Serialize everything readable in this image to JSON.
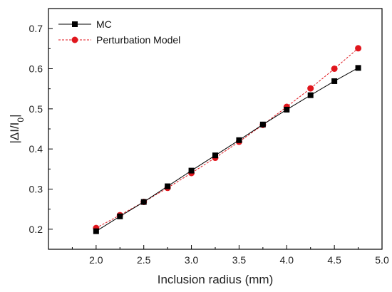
{
  "chart_data": {
    "type": "line",
    "title": "",
    "xlabel": "Inclusion radius (mm)",
    "ylabel": "|ΔI/I0|",
    "ylabel_parts": {
      "pre": "|ΔI/I",
      "sub": "0",
      "post": "|"
    },
    "xlim": [
      1.5,
      5.0
    ],
    "ylim": [
      0.15,
      0.75
    ],
    "x_ticks": [
      "2.0",
      "2.5",
      "3.0",
      "3.5",
      "4.0",
      "4.5",
      "5.0"
    ],
    "y_ticks": [
      "0.2",
      "0.3",
      "0.4",
      "0.5",
      "0.6",
      "0.7"
    ],
    "grid": false,
    "legend_position": "top-left",
    "x": [
      2.0,
      2.25,
      2.5,
      2.75,
      3.0,
      3.25,
      3.5,
      3.75,
      4.0,
      4.25,
      4.5,
      4.75
    ],
    "series": [
      {
        "name": "MC",
        "color": "#000000",
        "marker": "square",
        "line_style": "solid",
        "values": [
          0.195,
          0.232,
          0.268,
          0.307,
          0.346,
          0.384,
          0.422,
          0.461,
          0.498,
          0.534,
          0.569,
          0.602
        ]
      },
      {
        "name": "Perturbation Model",
        "color": "#e0161d",
        "marker": "circle",
        "line_style": "dashed",
        "values": [
          0.203,
          0.235,
          0.268,
          0.303,
          0.34,
          0.378,
          0.418,
          0.46,
          0.505,
          0.551,
          0.6,
          0.651
        ]
      }
    ]
  }
}
